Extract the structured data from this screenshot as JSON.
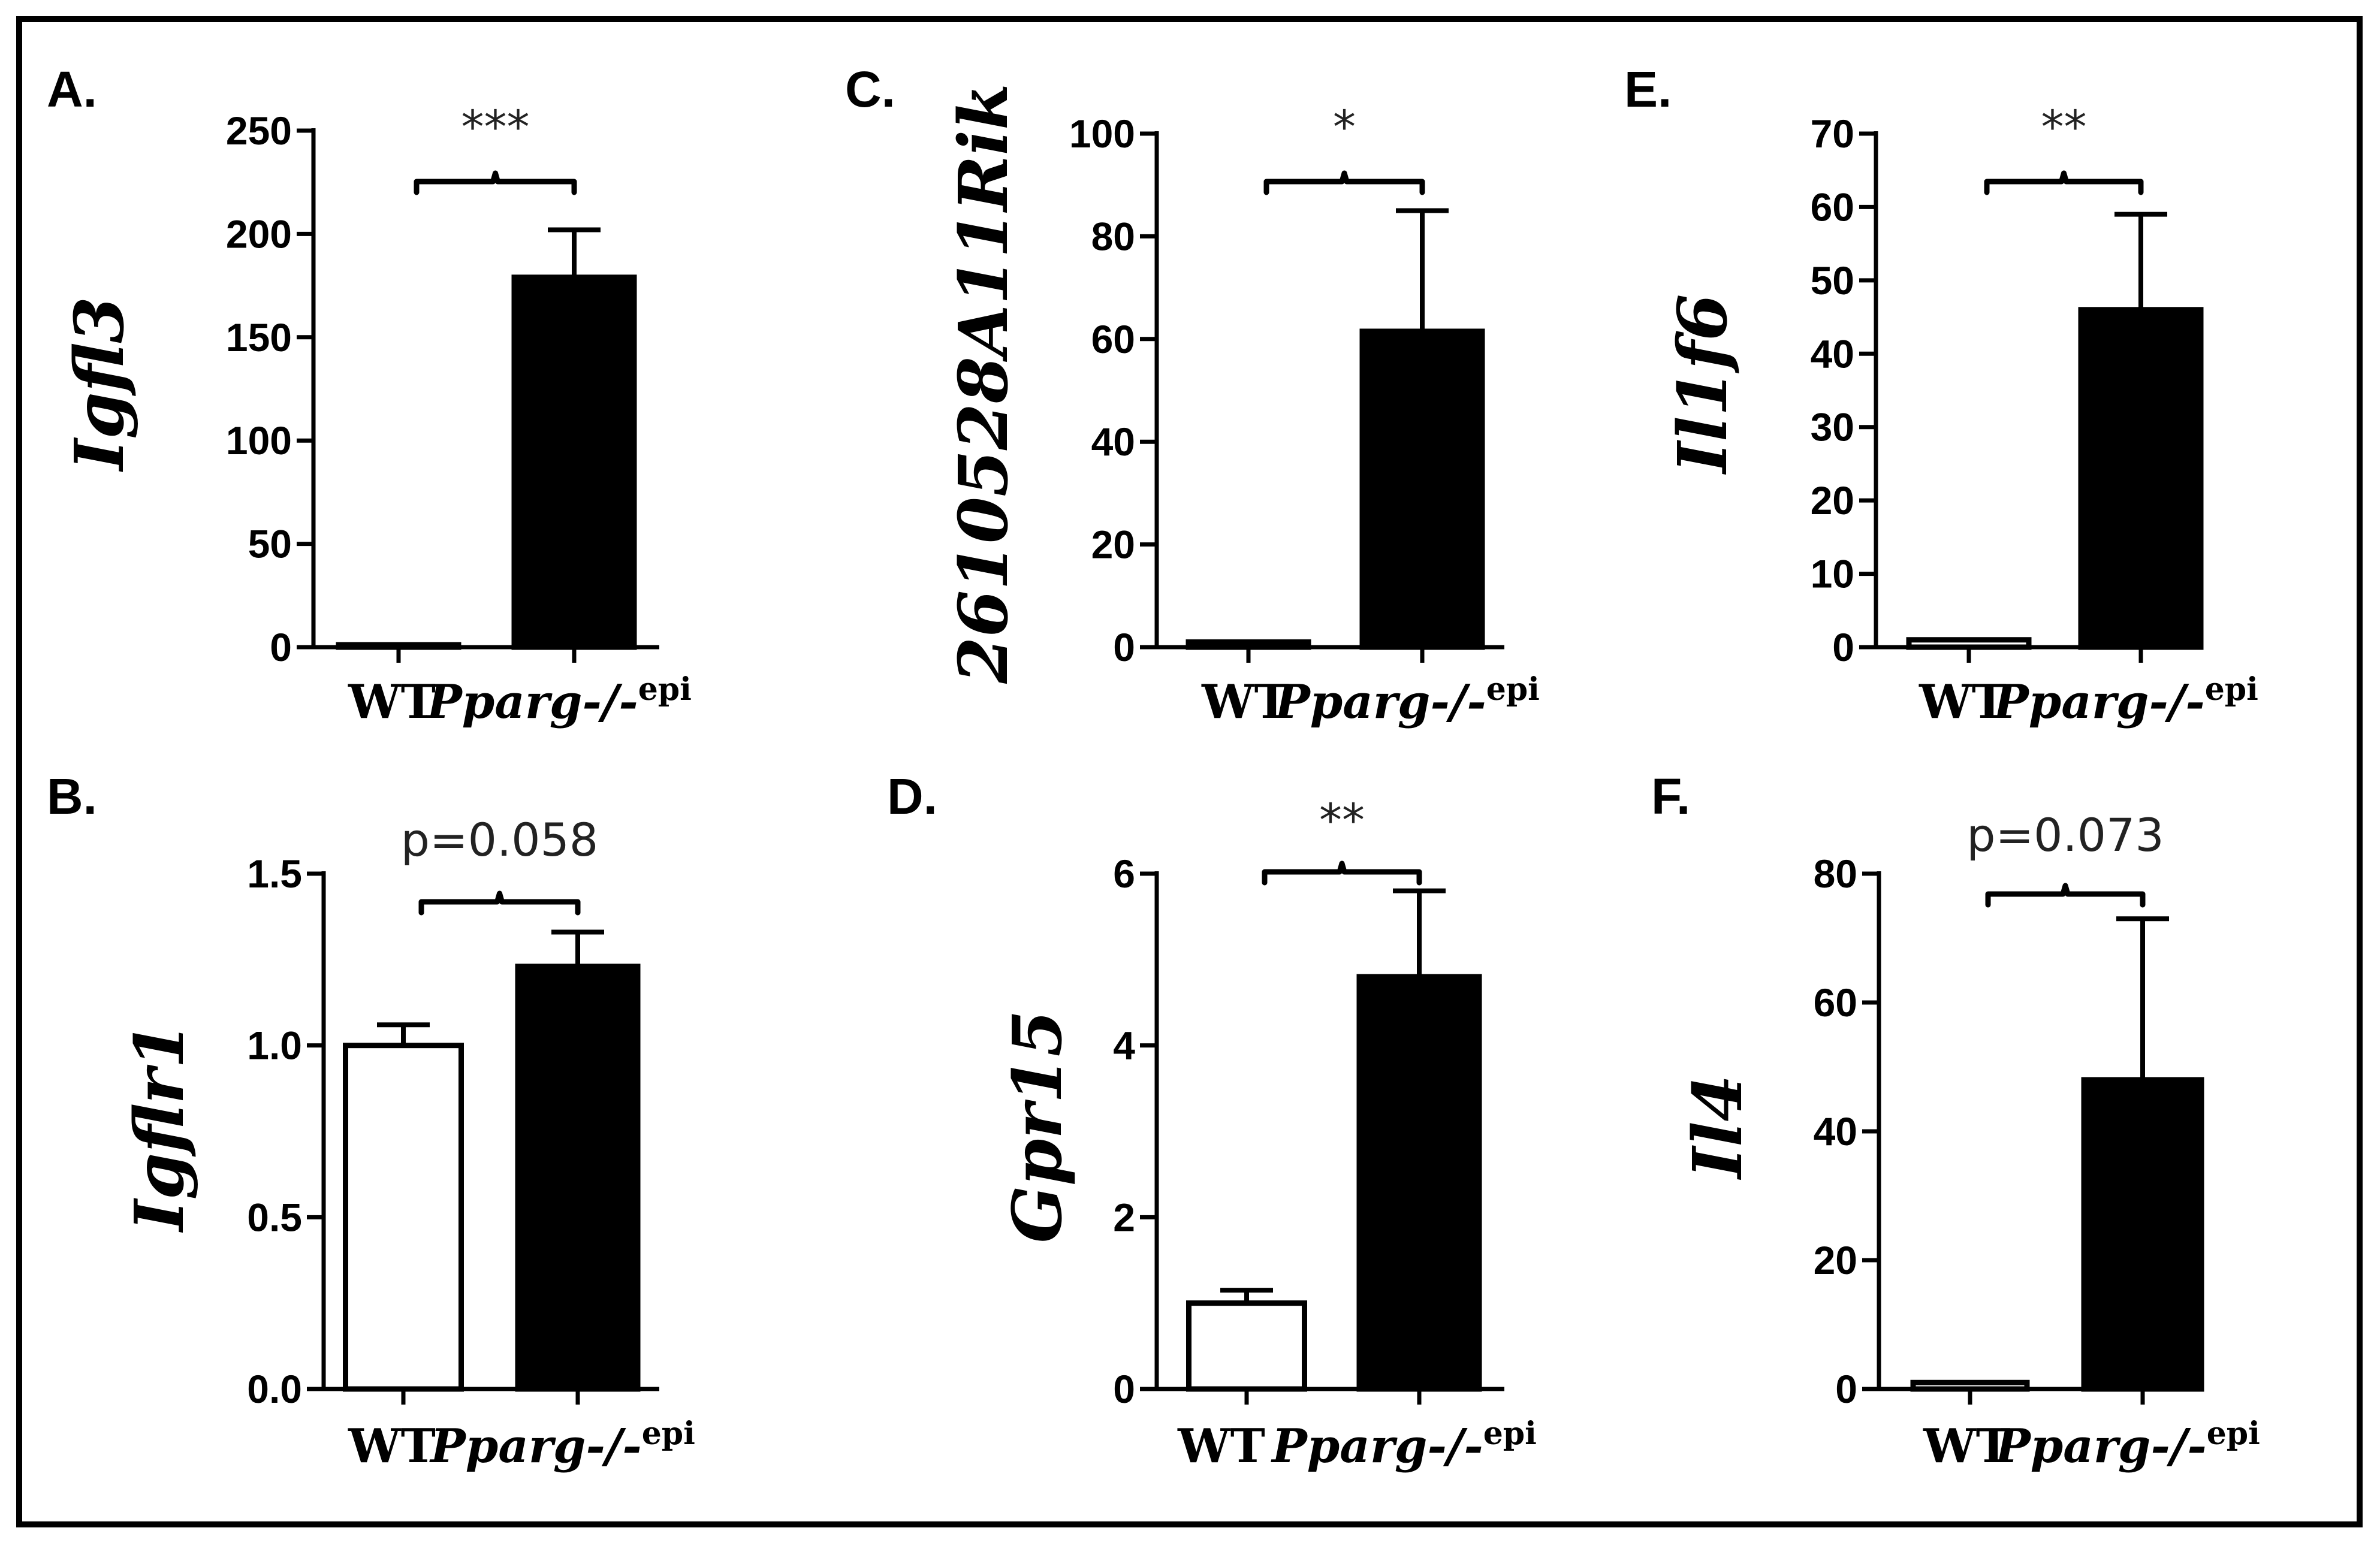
{
  "chart_data": [
    {
      "type": "bar",
      "panel": "A.",
      "ylabel": "Igfl3",
      "categories": [
        "WT",
        "Pparg-/-"
      ],
      "category_superscripts": [
        "",
        "epi"
      ],
      "values": [
        1,
        179
      ],
      "errors": [
        0,
        23
      ],
      "bar_fills": [
        "#ffffff",
        "#000000"
      ],
      "ylim": [
        0,
        250
      ],
      "yticks": [
        "0",
        "50",
        "100",
        "150",
        "200",
        "250"
      ],
      "significance": "***"
    },
    {
      "type": "bar",
      "panel": "C.",
      "ylabel": "2610528A11Rik",
      "categories": [
        "WT",
        "Pparg-/-"
      ],
      "category_superscripts": [
        "",
        "epi"
      ],
      "values": [
        1,
        61.5
      ],
      "errors": [
        0,
        23.5
      ],
      "bar_fills": [
        "#ffffff",
        "#000000"
      ],
      "ylim": [
        0,
        100
      ],
      "yticks": [
        "0",
        "20",
        "40",
        "60",
        "80",
        "100"
      ],
      "significance": "*"
    },
    {
      "type": "bar",
      "panel": "E.",
      "ylabel": "Il1f6",
      "categories": [
        "WT",
        "Pparg-/-"
      ],
      "category_superscripts": [
        "",
        "epi"
      ],
      "values": [
        1,
        46
      ],
      "errors": [
        0,
        13
      ],
      "bar_fills": [
        "#ffffff",
        "#000000"
      ],
      "ylim": [
        0,
        70
      ],
      "yticks": [
        "0",
        "10",
        "20",
        "30",
        "40",
        "50",
        "60",
        "70"
      ],
      "significance": "**"
    },
    {
      "type": "bar",
      "panel": "B.",
      "ylabel": "Igflr1",
      "categories": [
        "WT",
        "Pparg-/-"
      ],
      "category_superscripts": [
        "",
        "epi"
      ],
      "values": [
        1.0,
        1.23
      ],
      "errors": [
        0.06,
        0.1
      ],
      "bar_fills": [
        "#ffffff",
        "#000000"
      ],
      "ylim": [
        0,
        1.5
      ],
      "yticks": [
        "0.0",
        "0.5",
        "1.0",
        "1.5"
      ],
      "significance": "p=0.058"
    },
    {
      "type": "bar",
      "panel": "D.",
      "ylabel": "Gpr15",
      "categories": [
        "WT",
        "Pparg-/-"
      ],
      "category_superscripts": [
        "",
        "epi"
      ],
      "values": [
        1.0,
        4.8
      ],
      "errors": [
        0.15,
        1.0
      ],
      "bar_fills": [
        "#ffffff",
        "#000000"
      ],
      "ylim": [
        0,
        6
      ],
      "yticks": [
        "0",
        "2",
        "4",
        "6"
      ],
      "significance": "**"
    },
    {
      "type": "bar",
      "panel": "F.",
      "ylabel": "Il4",
      "categories": [
        "WT",
        "Pparg-/-"
      ],
      "category_superscripts": [
        "",
        "epi"
      ],
      "values": [
        1,
        48
      ],
      "errors": [
        0,
        25
      ],
      "bar_fills": [
        "#ffffff",
        "#000000"
      ],
      "ylim": [
        0,
        80
      ],
      "yticks": [
        "0",
        "20",
        "40",
        "60",
        "80"
      ],
      "significance": "p=0.073"
    }
  ]
}
